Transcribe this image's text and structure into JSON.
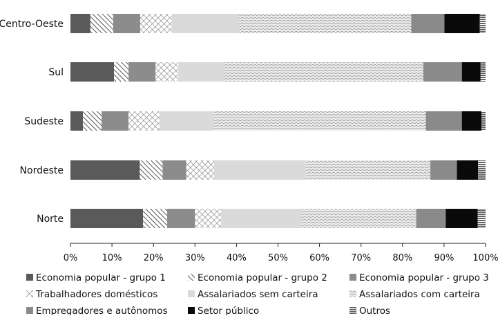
{
  "chart_data": {
    "type": "bar",
    "orientation": "horizontal",
    "stacked": true,
    "percent": true,
    "categories": [
      "Centro-Oeste",
      "Sul",
      "Sudeste",
      "Nordeste",
      "Norte"
    ],
    "series": [
      {
        "name": "Economia popular - grupo 1",
        "color": "#5a5a5a",
        "pattern": "solid",
        "values": [
          4.8,
          10.5,
          3.0,
          16.7,
          17.5
        ]
      },
      {
        "name": "Economia popular - grupo 2",
        "color": "#ffffff",
        "pattern": "diagonal",
        "values": [
          5.5,
          3.5,
          4.5,
          5.5,
          5.8
        ]
      },
      {
        "name": "Economia popular - grupo 3",
        "color": "#8c8c8c",
        "pattern": "solid",
        "values": [
          6.5,
          6.5,
          6.5,
          5.7,
          6.7
        ]
      },
      {
        "name": "Trabalhadores domésticos",
        "color": "#ffffff",
        "pattern": "crosshatch",
        "values": [
          7.6,
          5.5,
          7.5,
          6.7,
          6.3
        ]
      },
      {
        "name": "Assalariados sem carteira",
        "color": "#dadada",
        "pattern": "solid",
        "values": [
          16.2,
          11.0,
          13.0,
          22.0,
          19.2
        ]
      },
      {
        "name": "Assalariados com carteira",
        "color": "#ececec",
        "pattern": "zigzag",
        "values": [
          41.5,
          48.0,
          51.1,
          30.1,
          27.8
        ]
      },
      {
        "name": "Empregadores e autônomos",
        "color": "#8a8a8a",
        "pattern": "solid",
        "values": [
          8.0,
          9.3,
          8.7,
          6.4,
          7.1
        ]
      },
      {
        "name": "Setor público",
        "color": "#0a0a0a",
        "pattern": "solid",
        "values": [
          8.5,
          4.5,
          4.7,
          5.1,
          7.7
        ]
      },
      {
        "name": "Outros",
        "color": "#ffffff",
        "pattern": "hlines",
        "values": [
          1.4,
          1.2,
          1.0,
          1.8,
          1.9
        ]
      }
    ],
    "xlim": [
      0,
      100
    ],
    "x_ticks": [
      "0%",
      "10%",
      "20%",
      "30%",
      "40%",
      "50%",
      "60%",
      "70%",
      "80%",
      "90%",
      "100%"
    ],
    "title": "",
    "xlabel": "",
    "ylabel": "",
    "grid": false,
    "legend_placement": "bottom"
  }
}
